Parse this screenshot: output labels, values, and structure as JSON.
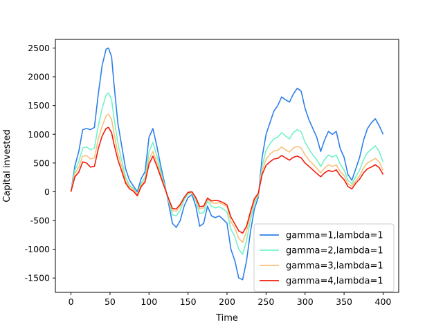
{
  "chart_data": {
    "type": "line",
    "title": "",
    "xlabel": "Time",
    "ylabel": "Capital invested",
    "xlim": [
      -20,
      420
    ],
    "ylim": [
      -1750,
      2650
    ],
    "xticks": [
      0,
      50,
      100,
      150,
      200,
      250,
      300,
      350,
      400
    ],
    "yticks": [
      -1500,
      -1000,
      -500,
      0,
      500,
      1000,
      1500,
      2000,
      2500
    ],
    "grid": false,
    "legend_position": "lower-right",
    "x": [
      0,
      5,
      10,
      15,
      20,
      25,
      30,
      35,
      40,
      45,
      48,
      52,
      55,
      60,
      65,
      70,
      75,
      80,
      85,
      90,
      95,
      100,
      105,
      110,
      115,
      120,
      125,
      130,
      135,
      140,
      145,
      150,
      155,
      160,
      165,
      170,
      175,
      180,
      185,
      190,
      195,
      200,
      205,
      210,
      215,
      220,
      225,
      230,
      235,
      240,
      245,
      250,
      255,
      260,
      265,
      270,
      275,
      280,
      285,
      290,
      295,
      300,
      305,
      310,
      315,
      320,
      325,
      330,
      335,
      340,
      345,
      350,
      355,
      360,
      365,
      370,
      375,
      380,
      385,
      390,
      395,
      400
    ],
    "series": [
      {
        "name": "gamma=1,lambda=1",
        "color": "#2c7fe8",
        "values": [
          0,
          450,
          700,
          1080,
          1100,
          1080,
          1120,
          1700,
          2200,
          2480,
          2500,
          2350,
          1900,
          1200,
          800,
          400,
          200,
          100,
          0,
          230,
          350,
          950,
          1100,
          800,
          450,
          150,
          -200,
          -550,
          -620,
          -500,
          -250,
          -100,
          -50,
          -250,
          -600,
          -550,
          -250,
          -420,
          -450,
          -420,
          -480,
          -550,
          -1000,
          -1200,
          -1500,
          -1530,
          -1200,
          -700,
          -300,
          -100,
          600,
          1000,
          1200,
          1400,
          1500,
          1650,
          1600,
          1560,
          1700,
          1800,
          1750,
          1450,
          1250,
          1100,
          950,
          700,
          900,
          1050,
          1000,
          1050,
          750,
          600,
          300,
          200,
          400,
          600,
          900,
          1100,
          1200,
          1270,
          1150,
          1000
        ]
      },
      {
        "name": "gamma=2,lambda=1",
        "color": "#72f2c8",
        "values": [
          0,
          380,
          520,
          760,
          780,
          730,
          760,
          1150,
          1450,
          1680,
          1720,
          1600,
          1300,
          850,
          550,
          250,
          110,
          60,
          -40,
          150,
          250,
          700,
          860,
          630,
          360,
          110,
          -160,
          -400,
          -420,
          -320,
          -140,
          -40,
          -20,
          -160,
          -380,
          -360,
          -160,
          -250,
          -280,
          -260,
          -300,
          -350,
          -650,
          -780,
          -1000,
          -1090,
          -850,
          -500,
          -200,
          -70,
          450,
          720,
          830,
          920,
          950,
          1030,
          970,
          920,
          1030,
          1080,
          1040,
          860,
          740,
          640,
          560,
          440,
          560,
          640,
          600,
          640,
          480,
          380,
          200,
          140,
          260,
          380,
          560,
          680,
          740,
          800,
          700,
          520
        ]
      },
      {
        "name": "gamma=3,lambda=1",
        "color": "#f8c07a",
        "values": [
          0,
          320,
          430,
          620,
          630,
          570,
          590,
          920,
          1140,
          1320,
          1350,
          1260,
          1030,
          680,
          440,
          190,
          80,
          40,
          -50,
          110,
          200,
          560,
          700,
          520,
          300,
          90,
          -130,
          -330,
          -340,
          -250,
          -110,
          -20,
          -10,
          -120,
          -300,
          -280,
          -120,
          -190,
          -200,
          -190,
          -220,
          -260,
          -520,
          -630,
          -810,
          -880,
          -690,
          -400,
          -160,
          -50,
          360,
          570,
          650,
          710,
          720,
          780,
          730,
          690,
          760,
          790,
          760,
          640,
          550,
          480,
          410,
          330,
          410,
          470,
          440,
          470,
          350,
          280,
          140,
          100,
          190,
          280,
          420,
          500,
          540,
          580,
          520,
          370
        ]
      },
      {
        "name": "gamma=4,lambda=1",
        "color": "#f01a0a",
        "values": [
          0,
          260,
          340,
          520,
          500,
          430,
          440,
          750,
          970,
          1100,
          1120,
          1030,
          840,
          560,
          360,
          150,
          50,
          10,
          -70,
          90,
          170,
          480,
          620,
          450,
          260,
          70,
          -120,
          -290,
          -300,
          -220,
          -100,
          -10,
          0,
          -100,
          -260,
          -250,
          -110,
          -160,
          -150,
          -160,
          -190,
          -230,
          -440,
          -560,
          -680,
          -720,
          -600,
          -350,
          -120,
          -30,
          300,
          460,
          520,
          570,
          580,
          630,
          590,
          550,
          600,
          620,
          590,
          500,
          440,
          380,
          320,
          260,
          330,
          370,
          350,
          380,
          280,
          210,
          90,
          50,
          150,
          220,
          330,
          400,
          430,
          470,
          420,
          300
        ]
      }
    ]
  }
}
